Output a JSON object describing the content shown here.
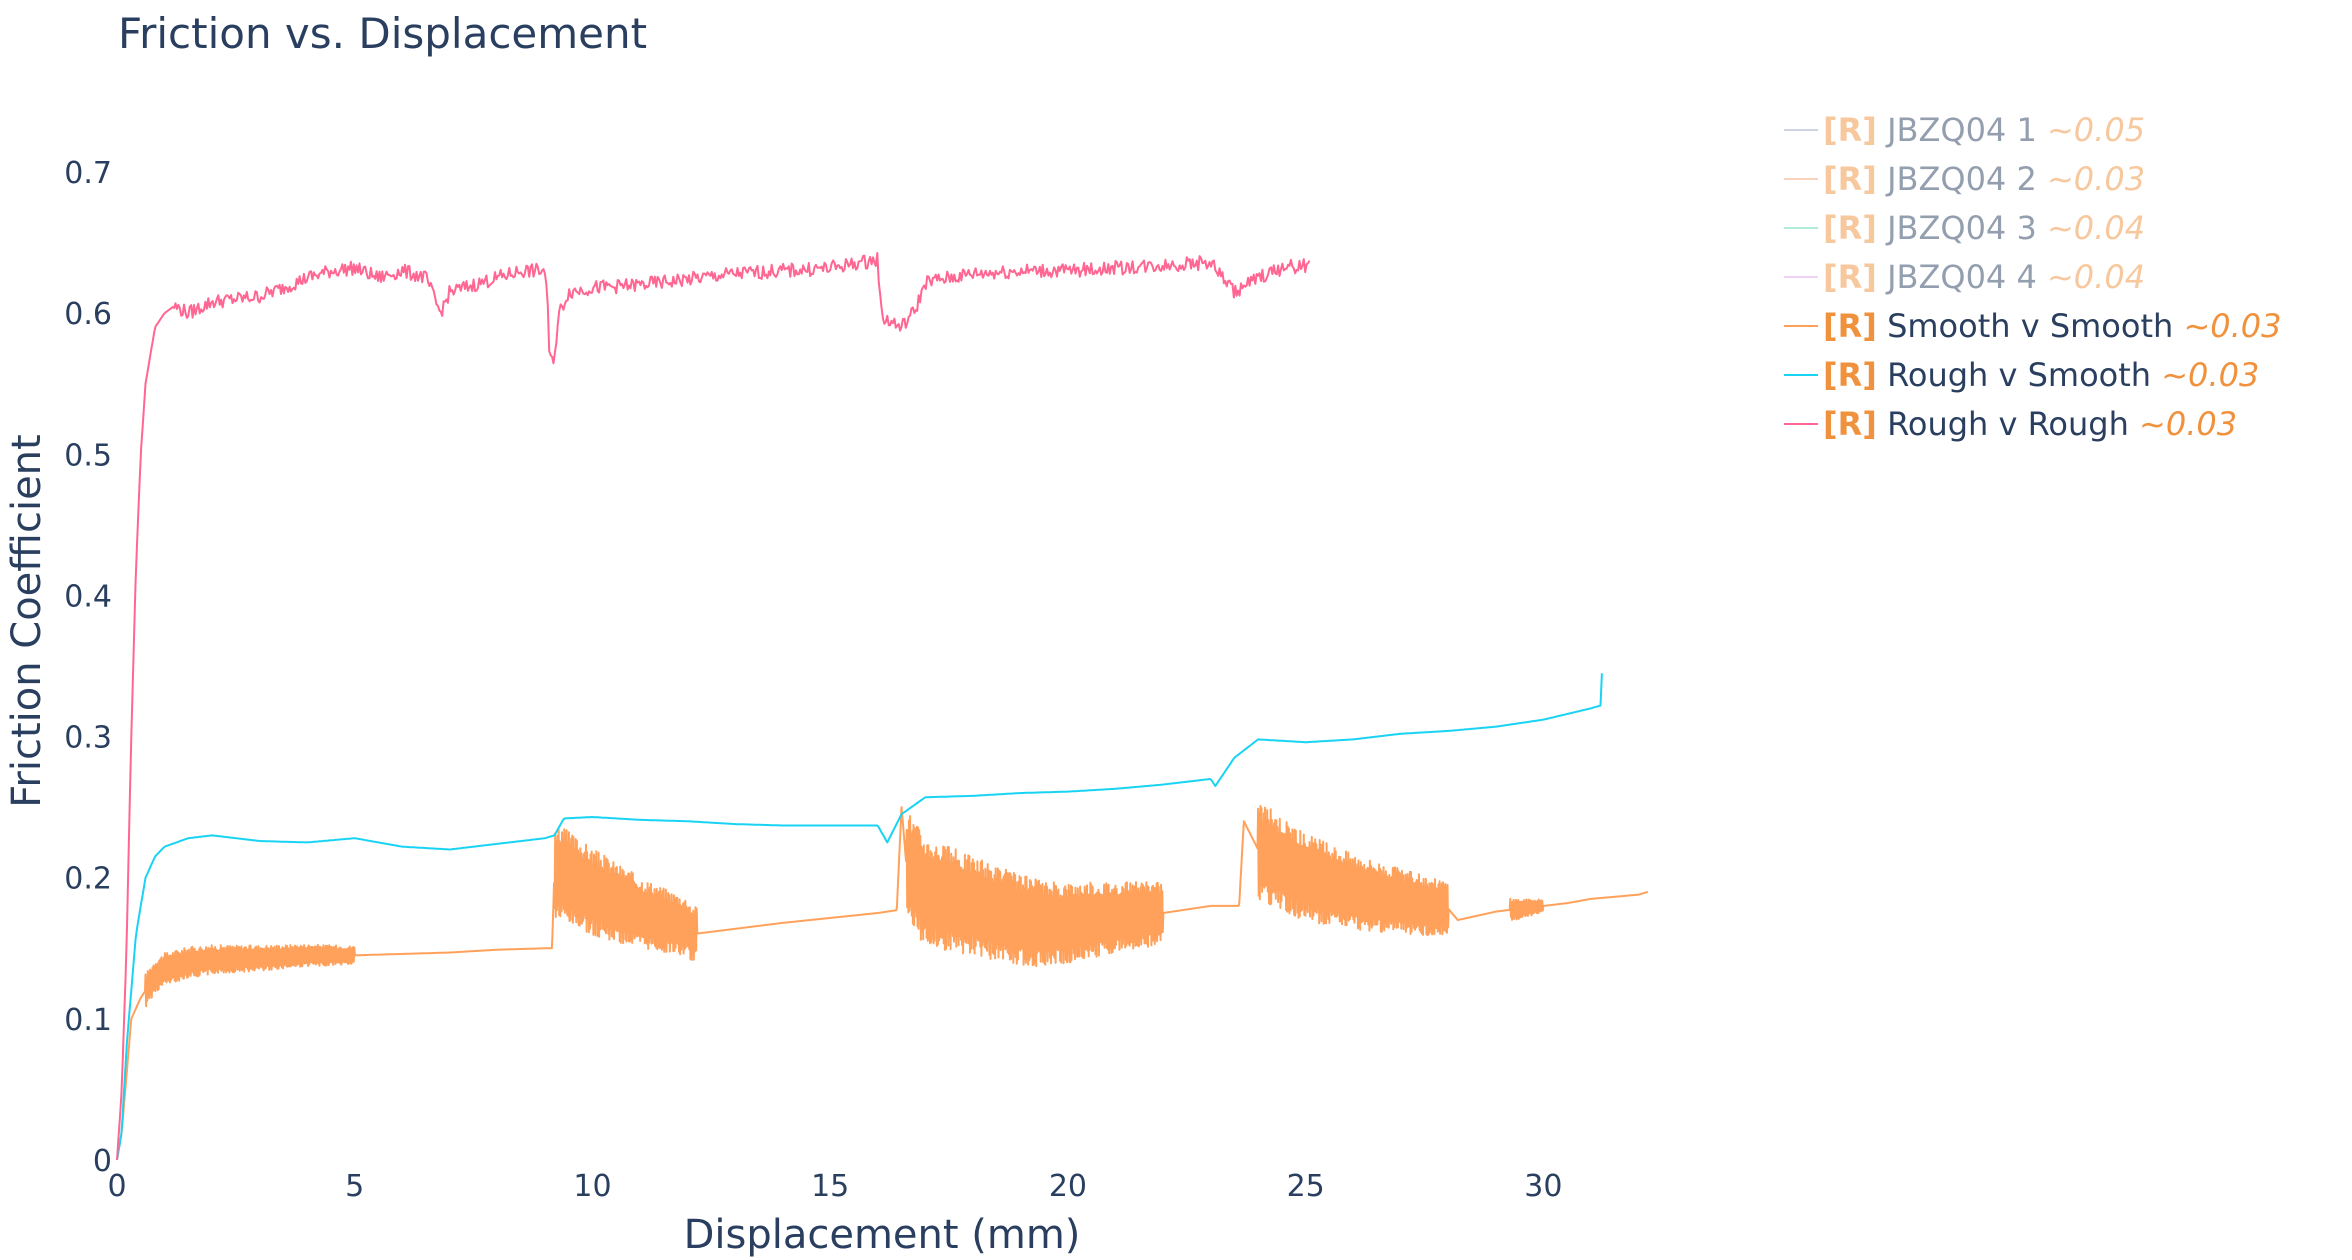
{
  "chart_data": {
    "type": "line",
    "title": "Friction vs. Displacement",
    "xlabel": "Displacement (mm)",
    "ylabel": "Friction Coefficient",
    "xlim": [
      0,
      32.2
    ],
    "ylim": [
      0,
      0.7
    ],
    "xticks": [
      0,
      5,
      10,
      15,
      20,
      25,
      30
    ],
    "yticks": [
      0,
      0.1,
      0.2,
      0.3,
      0.4,
      0.5,
      0.6,
      0.7
    ],
    "ytick_labels": [
      "0",
      "0.1",
      "0.2",
      "0.3",
      "0.4",
      "0.5",
      "0.6",
      "0.7"
    ],
    "grid": false,
    "legend_position": "top-right",
    "series": [
      {
        "name": "JBZQ04 1",
        "tag": "[R]",
        "annotation": "~0.05",
        "color": "#9fa8c9",
        "faded": true,
        "x": [],
        "y": []
      },
      {
        "name": "JBZQ04 2",
        "tag": "[R]",
        "annotation": "~0.03",
        "color": "#f2a580",
        "faded": true,
        "x": [],
        "y": []
      },
      {
        "name": "JBZQ04 3",
        "tag": "[R]",
        "annotation": "~0.04",
        "color": "#63d9b6",
        "faded": true,
        "x": [],
        "y": []
      },
      {
        "name": "JBZQ04 4",
        "tag": "[R]",
        "annotation": "~0.04",
        "color": "#e3a6ef",
        "faded": true,
        "x": [],
        "y": []
      },
      {
        "name": "Smooth v Smooth",
        "tag": "[R]",
        "annotation": "~0.03",
        "color": "#ffa15a",
        "faded": false,
        "x": [
          0,
          0.1,
          0.2,
          0.3,
          0.5,
          0.8,
          1,
          1.5,
          2,
          3,
          4,
          5,
          6,
          7,
          8,
          9,
          9.15,
          9.2,
          10,
          11,
          12,
          12.1,
          14,
          16,
          16.4,
          16.5,
          16.6,
          17,
          18,
          19,
          19.5,
          20,
          21,
          22,
          23,
          23.6,
          23.7,
          24,
          25,
          26,
          27,
          28,
          28.2,
          29,
          30,
          30.5,
          31,
          32,
          32.2
        ],
        "y": [
          0,
          0.02,
          0.06,
          0.1,
          0.115,
          0.13,
          0.135,
          0.14,
          0.142,
          0.143,
          0.145,
          0.145,
          0.146,
          0.147,
          0.149,
          0.15,
          0.15,
          0.205,
          0.19,
          0.175,
          0.165,
          0.16,
          0.168,
          0.175,
          0.177,
          0.25,
          0.21,
          0.19,
          0.18,
          0.17,
          0.167,
          0.168,
          0.172,
          0.175,
          0.18,
          0.18,
          0.24,
          0.22,
          0.2,
          0.19,
          0.183,
          0.178,
          0.17,
          0.176,
          0.18,
          0.182,
          0.185,
          0.188,
          0.19
        ],
        "oscillation_bands": [
          [
            0.6,
            5.0,
            0.012
          ],
          [
            9.2,
            12.2,
            0.035
          ],
          [
            16.6,
            22.0,
            0.04
          ],
          [
            24.0,
            28.0,
            0.035
          ],
          [
            29.3,
            30.0,
            0.008
          ]
        ]
      },
      {
        "name": "Rough v Smooth",
        "tag": "[R]",
        "annotation": "~0.03",
        "color": "#19d3f3",
        "faded": false,
        "x": [
          0,
          0.1,
          0.2,
          0.4,
          0.6,
          0.8,
          1,
          1.5,
          2,
          3,
          4,
          5,
          6,
          7,
          8,
          9,
          9.2,
          9.4,
          10,
          11,
          12,
          13,
          14,
          15,
          16,
          16.2,
          16.5,
          17,
          18,
          19,
          20,
          21,
          22,
          23,
          23.1,
          23.5,
          24,
          25,
          26,
          27,
          28,
          29,
          30,
          31,
          31.2,
          31.25
        ],
        "y": [
          0,
          0.02,
          0.08,
          0.16,
          0.2,
          0.215,
          0.222,
          0.228,
          0.23,
          0.226,
          0.225,
          0.228,
          0.222,
          0.22,
          0.224,
          0.228,
          0.23,
          0.242,
          0.243,
          0.241,
          0.24,
          0.238,
          0.237,
          0.237,
          0.237,
          0.225,
          0.245,
          0.257,
          0.258,
          0.26,
          0.261,
          0.263,
          0.266,
          0.27,
          0.265,
          0.285,
          0.298,
          0.296,
          0.298,
          0.302,
          0.304,
          0.307,
          0.312,
          0.32,
          0.322,
          0.36
        ]
      },
      {
        "name": "Rough v Rough",
        "tag": "[R]",
        "annotation": "~0.03",
        "color": "#ff6692",
        "faded": false,
        "x": [
          0,
          0.1,
          0.2,
          0.3,
          0.4,
          0.5,
          0.6,
          0.8,
          1.0,
          1.2,
          1.5,
          2,
          2.5,
          3,
          3.5,
          4,
          4.5,
          5,
          5.5,
          6,
          6.5,
          6.8,
          7,
          7.5,
          8,
          8.5,
          9,
          9.05,
          9.1,
          9.2,
          9.3,
          9.5,
          10,
          11,
          12,
          13,
          14,
          15,
          16,
          16.05,
          16.1,
          16.5,
          16.8,
          17,
          18,
          19,
          20,
          21,
          22,
          23,
          23.5,
          24,
          24.5,
          25,
          25.1
        ],
        "y": [
          0,
          0.05,
          0.15,
          0.3,
          0.42,
          0.5,
          0.55,
          0.59,
          0.6,
          0.605,
          0.6,
          0.608,
          0.61,
          0.612,
          0.618,
          0.625,
          0.63,
          0.632,
          0.625,
          0.63,
          0.625,
          0.6,
          0.615,
          0.62,
          0.625,
          0.63,
          0.63,
          0.61,
          0.565,
          0.57,
          0.6,
          0.615,
          0.618,
          0.62,
          0.624,
          0.628,
          0.63,
          0.632,
          0.638,
          0.61,
          0.597,
          0.59,
          0.603,
          0.622,
          0.628,
          0.63,
          0.63,
          0.632,
          0.634,
          0.636,
          0.615,
          0.625,
          0.632,
          0.634,
          0.633
        ],
        "noise": 0.005
      }
    ]
  }
}
